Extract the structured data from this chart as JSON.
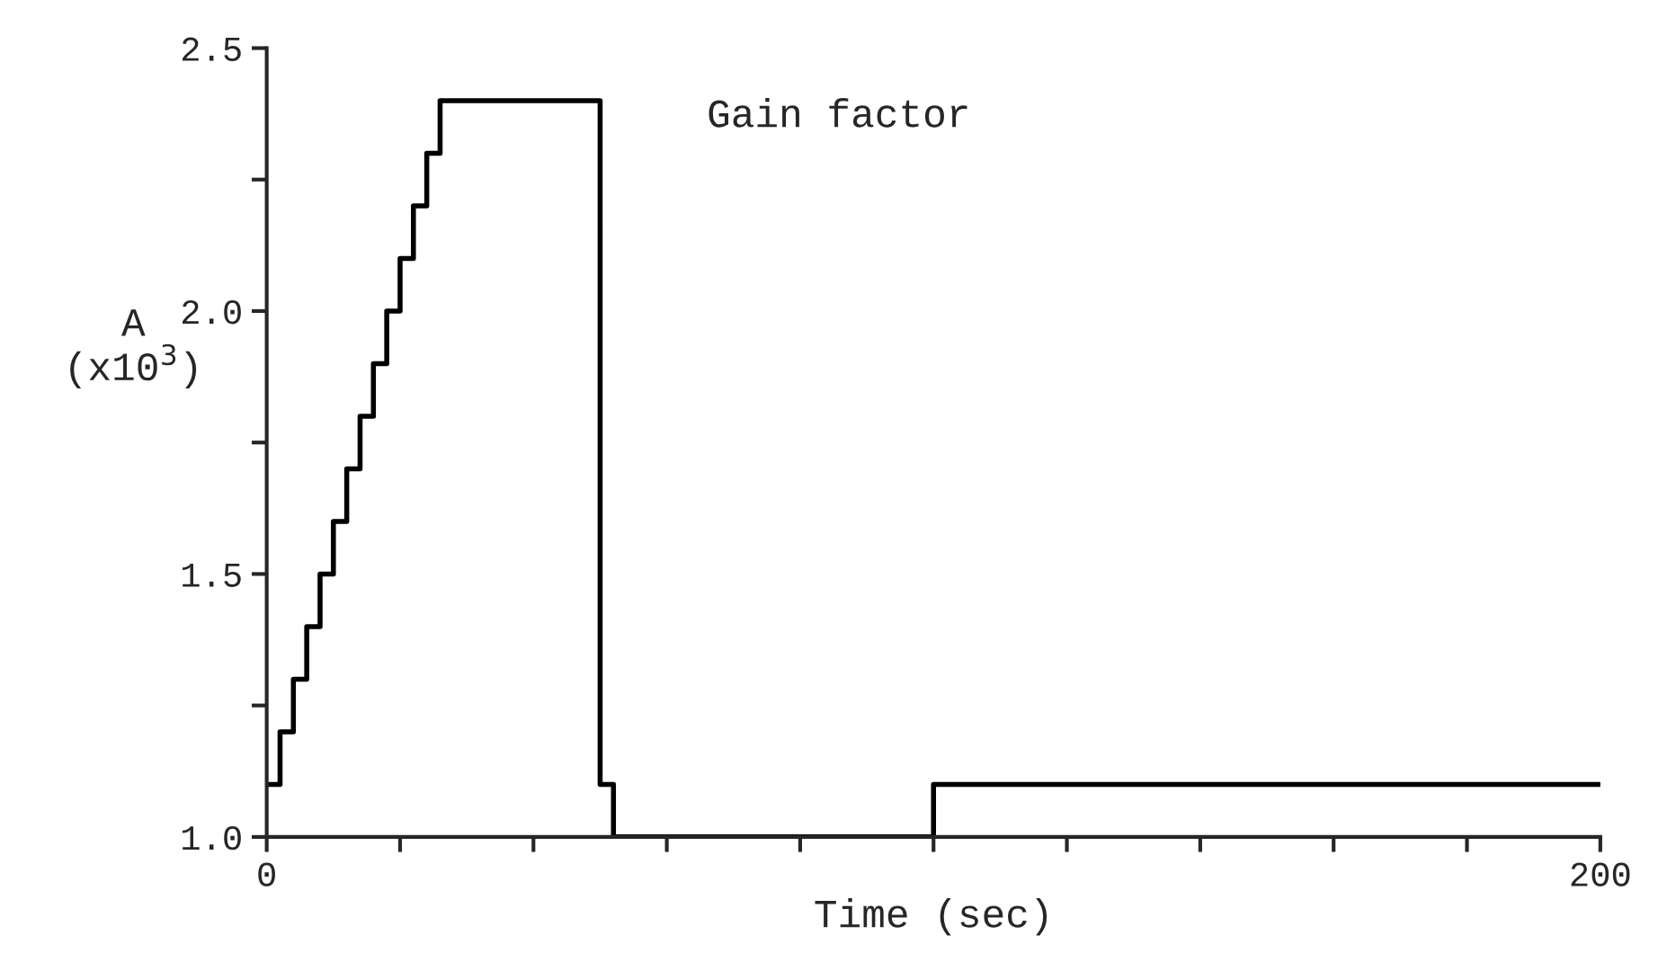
{
  "chart_data": {
    "type": "step",
    "x": [
      0,
      2,
      4,
      6,
      8,
      10,
      12,
      14,
      16,
      18,
      20,
      22,
      24,
      26,
      50,
      52,
      100,
      200
    ],
    "values": [
      1.1,
      1.2,
      1.3,
      1.4,
      1.5,
      1.6,
      1.7,
      1.8,
      1.9,
      2.0,
      2.1,
      2.2,
      2.3,
      2.4,
      1.1,
      1.0,
      1.1,
      1.1
    ],
    "color": "#000000",
    "xlabel": "Time (sec)",
    "ylabel": "A\n(x10$^{3}$)",
    "annotations": [
      "Gain factor"
    ],
    "xlim": [
      0,
      200
    ],
    "ylim": [
      1.0,
      2.5
    ],
    "xticks": [
      0,
      {
        "value": 20,
        "label": null
      },
      {
        "value": 40,
        "label": null
      },
      {
        "value": 60,
        "label": null
      },
      {
        "value": 80,
        "label": null
      },
      {
        "value": 100,
        "label": null
      },
      {
        "value": 120,
        "label": null
      },
      {
        "value": 140,
        "label": null
      },
      {
        "value": 160,
        "label": null
      },
      {
        "value": 180,
        "label": null
      },
      200
    ],
    "yticks": [
      {
        "value": 1.0,
        "label": "1.0"
      },
      {
        "value": 1.25,
        "label": null
      },
      {
        "value": 1.5,
        "label": "1.5"
      },
      {
        "value": 1.75,
        "label": null
      },
      {
        "value": 2.0,
        "label": "2.0"
      },
      {
        "value": 2.25,
        "label": null
      },
      {
        "value": 2.5,
        "label": "2.5"
      }
    ],
    "grid": false,
    "legend": false
  }
}
